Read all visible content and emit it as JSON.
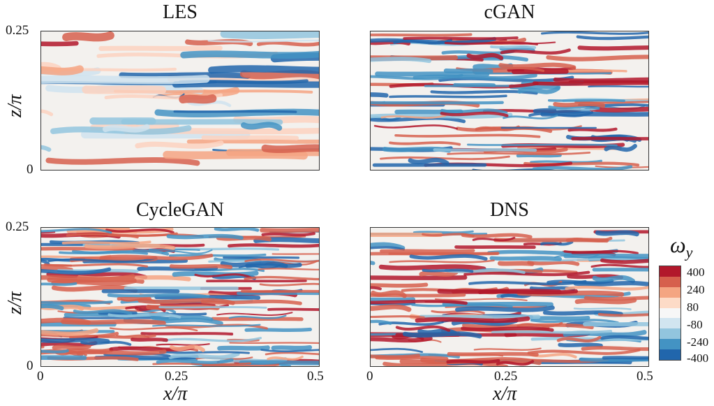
{
  "panels": {
    "tl": {
      "title": "LES"
    },
    "tr": {
      "title": "cGAN"
    },
    "bl": {
      "title": "CycleGAN"
    },
    "br": {
      "title": "DNS"
    }
  },
  "axes": {
    "y_label": "z/π",
    "y_ticks": [
      "0.25",
      "0"
    ],
    "x_label": "x/π",
    "x_ticks": [
      "0",
      "0.25",
      "0.5"
    ]
  },
  "colorbar": {
    "title": "ω",
    "title_sub": "y",
    "ticks": [
      "400",
      "240",
      "80",
      "-80",
      "-240",
      "-400"
    ],
    "colors": [
      "#b2182b",
      "#d6604d",
      "#f4a582",
      "#fddbc7",
      "#f7f7f7",
      "#d1e5f0",
      "#92c5de",
      "#4393c3",
      "#2166ac"
    ]
  }
}
